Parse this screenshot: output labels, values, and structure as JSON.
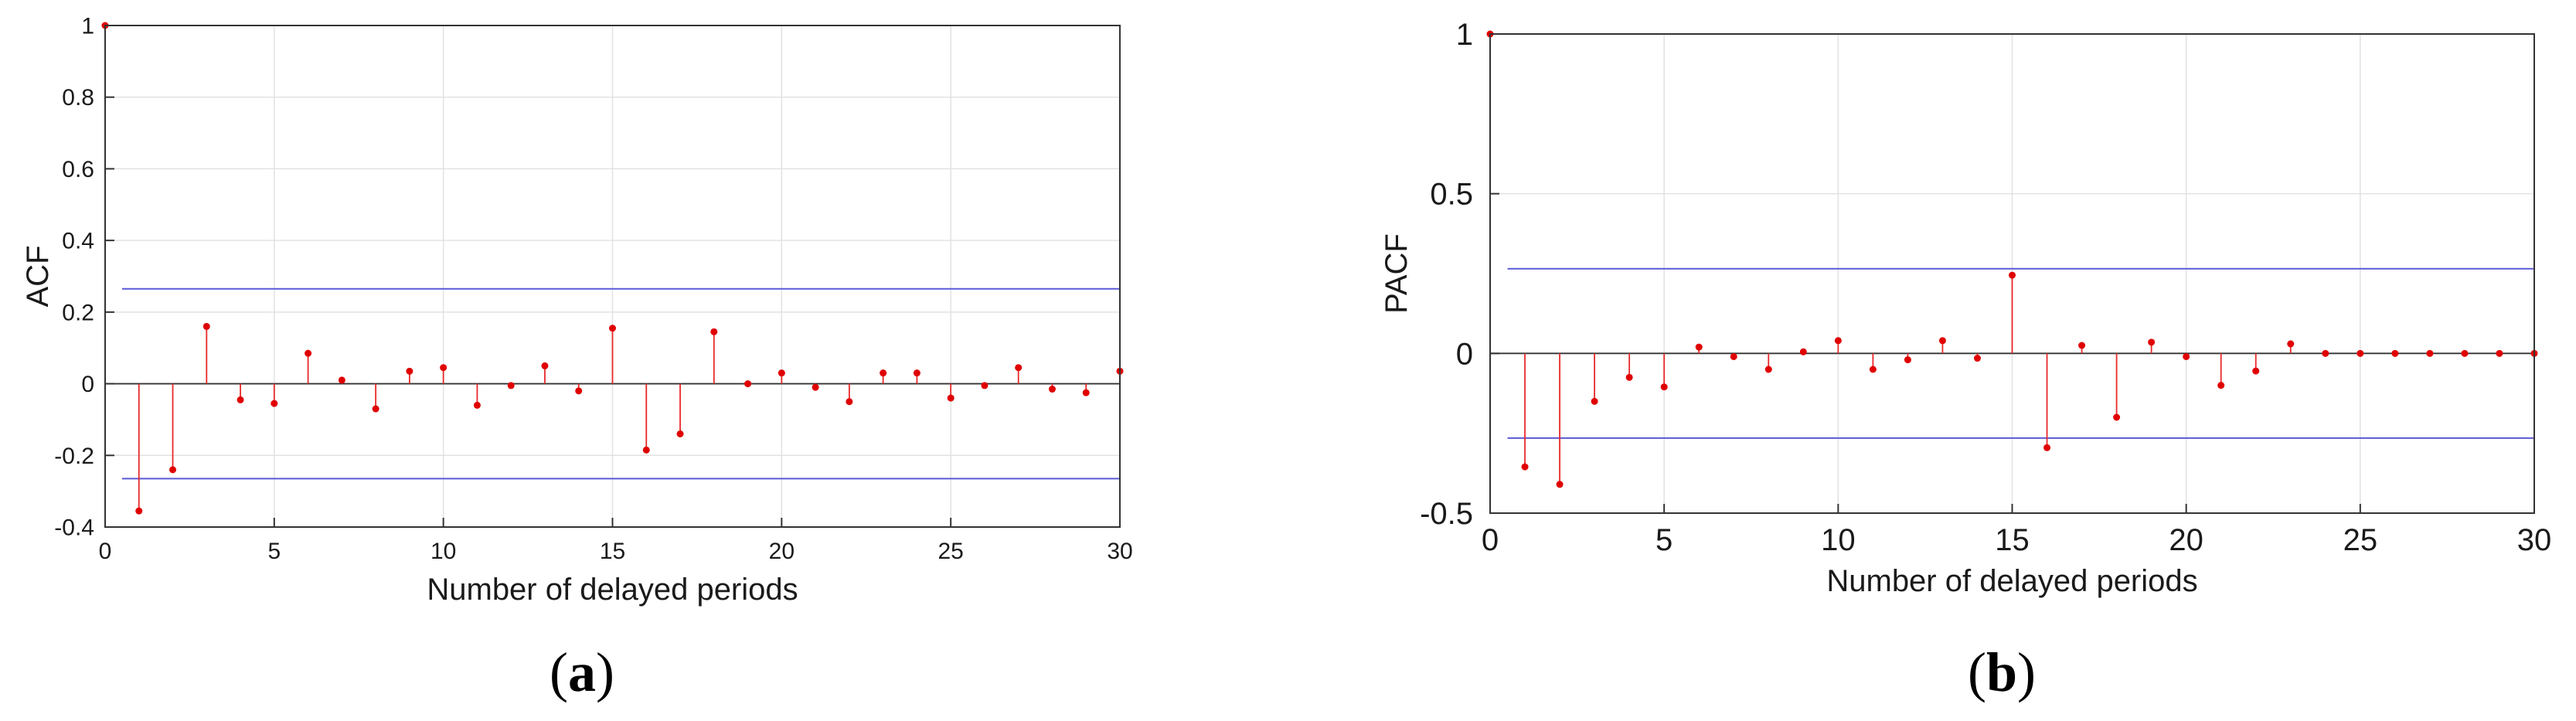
{
  "panels": [
    {
      "caption_open": "(",
      "caption_letter": "a",
      "caption_close": ")"
    },
    {
      "caption_open": "(",
      "caption_letter": "b",
      "caption_close": ")"
    }
  ],
  "colors": {
    "stem": "#e8292b",
    "marker": "#e00000",
    "bound": "#5a5ad8",
    "grid": "#e2e2e2",
    "axis": "#333333",
    "zero_line": "#333333"
  },
  "chart_data": [
    {
      "type": "stem",
      "xlabel": "Number of delayed periods",
      "ylabel": "ACF",
      "xlim": [
        0,
        30
      ],
      "ylim": [
        -0.4,
        1
      ],
      "xticks": [
        0,
        5,
        10,
        15,
        20,
        25,
        30
      ],
      "xtick_labels": [
        "0",
        "5",
        "10",
        "15",
        "20",
        "25",
        "30"
      ],
      "yticks": [
        -0.4,
        -0.2,
        0,
        0.2,
        0.4,
        0.6,
        0.8,
        1
      ],
      "ytick_labels": [
        "-0.4",
        "-0.2",
        "0",
        "0.2",
        "0.4",
        "0.6",
        "0.8",
        "1"
      ],
      "grid": true,
      "confidence_bounds": [
        0.265,
        -0.265
      ],
      "x": [
        0,
        1,
        2,
        3,
        4,
        5,
        6,
        7,
        8,
        9,
        10,
        11,
        12,
        13,
        14,
        15,
        16,
        17,
        18,
        19,
        20,
        21,
        22,
        23,
        24,
        25,
        26,
        27,
        28,
        29,
        30
      ],
      "values": [
        1,
        -0.355,
        -0.24,
        0.16,
        -0.045,
        -0.055,
        0.085,
        0.01,
        -0.07,
        0.035,
        0.045,
        -0.06,
        -0.005,
        0.05,
        -0.02,
        0.155,
        -0.185,
        -0.14,
        0.145,
        0.0,
        0.03,
        -0.01,
        -0.05,
        0.03,
        0.03,
        -0.04,
        -0.005,
        0.045,
        -0.015,
        -0.025,
        0.035
      ]
    },
    {
      "type": "stem",
      "xlabel": "Number of delayed periods",
      "ylabel": "PACF",
      "xlim": [
        0,
        30
      ],
      "ylim": [
        -0.5,
        1
      ],
      "xticks": [
        0,
        5,
        10,
        15,
        20,
        25,
        30
      ],
      "xtick_labels": [
        "0",
        "5",
        "10",
        "15",
        "20",
        "25",
        "30"
      ],
      "yticks": [
        -0.5,
        0,
        0.5,
        1
      ],
      "ytick_labels": [
        "-0.5",
        "0",
        "0.5",
        "1"
      ],
      "grid": true,
      "confidence_bounds": [
        0.265,
        -0.265
      ],
      "x": [
        0,
        1,
        2,
        3,
        4,
        5,
        6,
        7,
        8,
        9,
        10,
        11,
        12,
        13,
        14,
        15,
        16,
        17,
        18,
        19,
        20,
        21,
        22,
        23,
        24,
        25,
        26,
        27,
        28,
        29,
        30
      ],
      "values": [
        1,
        -0.355,
        -0.41,
        -0.15,
        -0.075,
        -0.105,
        0.02,
        -0.01,
        -0.05,
        0.005,
        0.04,
        -0.05,
        -0.02,
        0.04,
        -0.015,
        0.245,
        -0.295,
        0.025,
        -0.2,
        0.035,
        -0.01,
        -0.1,
        -0.055,
        0.03,
        0.0,
        0.0,
        0.0,
        0.0,
        0.0,
        0.0,
        0.0
      ]
    }
  ]
}
